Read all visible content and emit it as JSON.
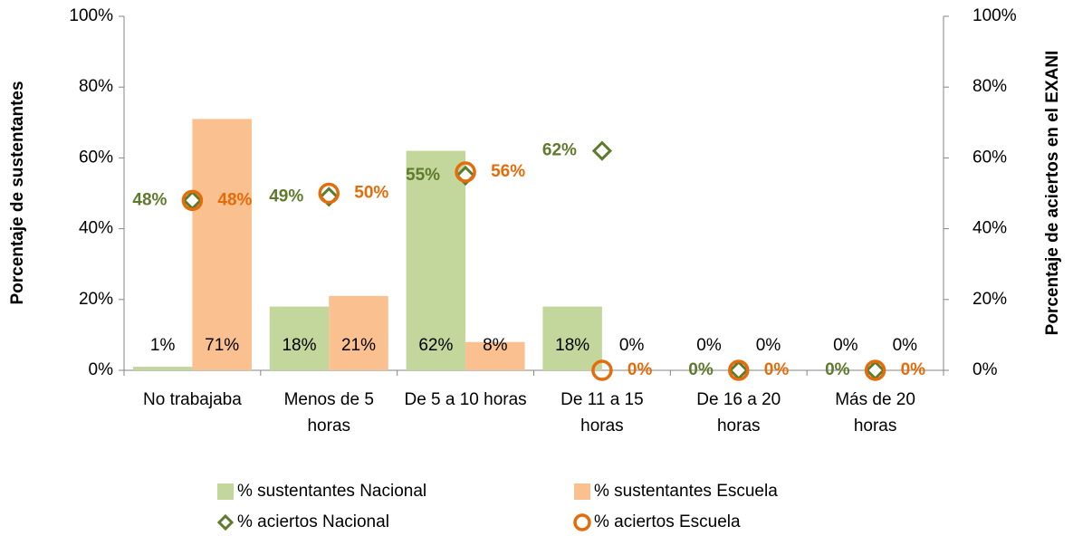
{
  "chart_data": {
    "type": "bar",
    "categories": [
      "No trabajaba",
      "Menos de 5 horas",
      "De 5 a 10 horas",
      "De 11 a 15 horas",
      "De 16 a 20 horas",
      "Más de 20 horas"
    ],
    "y_label": "Porcentaje de sustentantes",
    "y2_label": "Porcentaje de aciertos en el EXANI",
    "ylim": [
      0,
      100
    ],
    "yticks": [
      {
        "value": 0,
        "label": "0%"
      },
      {
        "value": 20,
        "label": "20%"
      },
      {
        "value": 40,
        "label": "40%"
      },
      {
        "value": 60,
        "label": "60%"
      },
      {
        "value": 80,
        "label": "80%"
      },
      {
        "value": 100,
        "label": "100%"
      }
    ],
    "y2lim": [
      0,
      100
    ],
    "y2ticks": [
      {
        "value": 0,
        "label": "0%"
      },
      {
        "value": 20,
        "label": "20%"
      },
      {
        "value": 40,
        "label": "40%"
      },
      {
        "value": 60,
        "label": "60%"
      },
      {
        "value": 80,
        "label": "80%"
      },
      {
        "value": 100,
        "label": "100%"
      }
    ],
    "series": [
      {
        "name": "% sustentantes Nacional",
        "type": "bar",
        "color": "#c3d69b",
        "values": [
          1,
          18,
          62,
          18,
          0,
          0
        ],
        "value_labels": [
          "1%",
          "18%",
          "62%",
          "18%",
          "0%",
          "0%"
        ]
      },
      {
        "name": "% sustentantes Escuela",
        "type": "bar",
        "color": "#fac090",
        "values": [
          71,
          21,
          8,
          0,
          0,
          0
        ],
        "value_labels": [
          "71%",
          "21%",
          "8%",
          "0%",
          "0%",
          "0%"
        ]
      },
      {
        "name": "% aciertos Nacional",
        "type": "marker",
        "marker": "diamond",
        "axis": "y2",
        "color": "#5f7a2c",
        "values": [
          48,
          49,
          55,
          62,
          0,
          0
        ],
        "value_labels": [
          "48%",
          "49%",
          "55%",
          "62%",
          "0%",
          "0%"
        ]
      },
      {
        "name": "% aciertos Escuela",
        "type": "marker",
        "marker": "circle",
        "axis": "y2",
        "color": "#e46c0a",
        "values": [
          48,
          50,
          56,
          0,
          0,
          0
        ],
        "value_labels": [
          "48%",
          "50%",
          "56%",
          "0%",
          "0%",
          "0%"
        ]
      }
    ]
  }
}
